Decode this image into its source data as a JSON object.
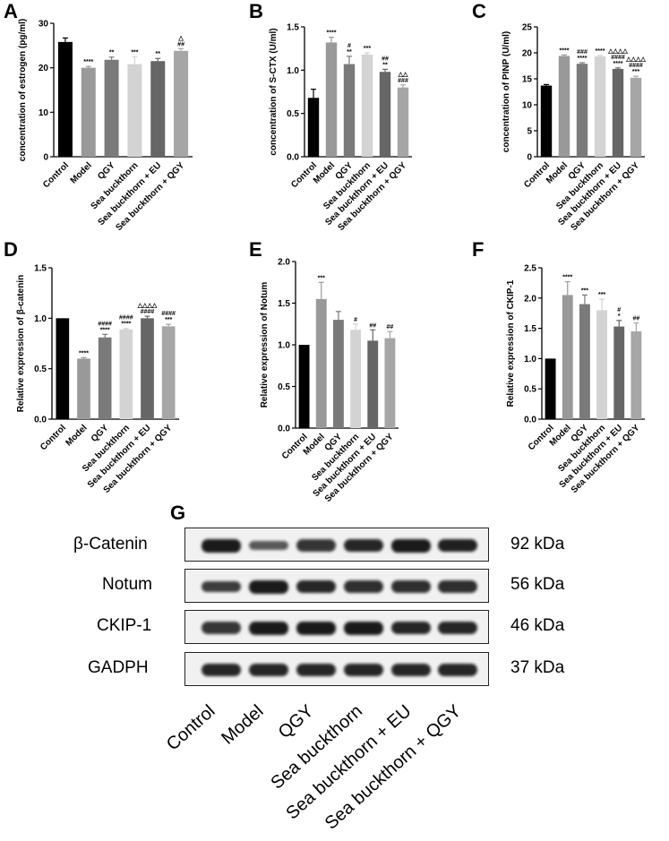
{
  "panels": [
    "A",
    "B",
    "C",
    "D",
    "E",
    "F",
    "G"
  ],
  "chart_data": [
    {
      "type": "bar",
      "panel": "A",
      "ylabel": "concentration of estrogen (pg/ml)",
      "ylim": [
        0,
        30
      ],
      "yticks": [
        "0",
        "10",
        "20",
        "30"
      ],
      "categories": [
        "Control",
        "Model",
        "QGY",
        "Sea buckthorn",
        "Sea buckthorn + EU",
        "Sea buckthorn + QGY"
      ],
      "values": [
        25.8,
        20.0,
        21.8,
        20.8,
        21.5,
        23.8
      ],
      "errors": [
        0.9,
        0.3,
        0.6,
        1.7,
        0.6,
        0.5
      ],
      "significance": [
        [
          ""
        ],
        [
          "****"
        ],
        [
          "**"
        ],
        [
          "***"
        ],
        [
          "**"
        ],
        [
          "△",
          "##"
        ]
      ],
      "colors": [
        "#000000",
        "#999999",
        "#7a7a7a",
        "#d3d3d3",
        "#666666",
        "#a6a6a6"
      ]
    },
    {
      "type": "bar",
      "panel": "B",
      "ylabel": "concentration of S-CTX (U/ml)",
      "ylim": [
        0,
        1.5
      ],
      "yticks": [
        "0.0",
        "0.5",
        "1.0",
        "1.5"
      ],
      "categories": [
        "Control",
        "Model",
        "QGY",
        "Sea buckthorn",
        "Sea buckthorn + EU",
        "Sea buckthorn + QGY"
      ],
      "values": [
        0.68,
        1.32,
        1.07,
        1.18,
        0.98,
        0.8
      ],
      "errors": [
        0.1,
        0.06,
        0.09,
        0.02,
        0.03,
        0.03
      ],
      "significance": [
        [
          ""
        ],
        [
          "****"
        ],
        [
          "#",
          "**"
        ],
        [
          "***"
        ],
        [
          "##",
          "**"
        ],
        [
          "△△",
          "###"
        ]
      ],
      "colors": [
        "#000000",
        "#999999",
        "#7a7a7a",
        "#d3d3d3",
        "#666666",
        "#a6a6a6"
      ]
    },
    {
      "type": "bar",
      "panel": "C",
      "ylabel": "concentration of PINP (U/ml)",
      "ylim": [
        0,
        25
      ],
      "yticks": [
        "0",
        "5",
        "10",
        "15",
        "20",
        "25"
      ],
      "categories": [
        "Control",
        "Model",
        "QGY",
        "Sea buckthorn",
        "Sea buckthorn + EU",
        "Sea buckthorn + QGY"
      ],
      "values": [
        13.7,
        19.4,
        17.9,
        19.3,
        16.9,
        15.2
      ],
      "errors": [
        0.2,
        0.2,
        0.2,
        0.2,
        0.2,
        0.3
      ],
      "significance": [
        [
          ""
        ],
        [
          "****"
        ],
        [
          "###",
          "****"
        ],
        [
          "****"
        ],
        [
          "△△△△",
          "####",
          "****"
        ],
        [
          "△△△△",
          "####",
          "***"
        ]
      ],
      "colors": [
        "#000000",
        "#999999",
        "#7a7a7a",
        "#d3d3d3",
        "#666666",
        "#a6a6a6"
      ]
    },
    {
      "type": "bar",
      "panel": "D",
      "ylabel": "Relative expression of β-catenin",
      "ylim": [
        0,
        1.5
      ],
      "yticks": [
        "0.0",
        "0.5",
        "1.0",
        "1.5"
      ],
      "categories": [
        "Control",
        "Model",
        "QGY",
        "Sea buckthorn",
        "Sea buckthorn + EU",
        "Sea buckthorn + QGY"
      ],
      "values": [
        1.0,
        0.6,
        0.81,
        0.89,
        1.0,
        0.92
      ],
      "errors": [
        0.0,
        0.01,
        0.03,
        0.01,
        0.02,
        0.02
      ],
      "significance": [
        [
          ""
        ],
        [
          "****"
        ],
        [
          "####",
          "****"
        ],
        [
          "####",
          "****"
        ],
        [
          "△△△△",
          "####"
        ],
        [
          "####",
          "***"
        ]
      ],
      "colors": [
        "#000000",
        "#999999",
        "#7a7a7a",
        "#d3d3d3",
        "#666666",
        "#a6a6a6"
      ]
    },
    {
      "type": "bar",
      "panel": "E",
      "ylabel": "Relative expression of Notum",
      "ylim": [
        0,
        2.0
      ],
      "yticks": [
        "0.0",
        "0.5",
        "1.0",
        "1.5",
        "2.0"
      ],
      "categories": [
        "Control",
        "Model",
        "QGY",
        "Sea buckthorn",
        "Sea buckthorn + EU",
        "Sea buckthorn + QGY"
      ],
      "values": [
        1.0,
        1.55,
        1.3,
        1.18,
        1.05,
        1.08
      ],
      "errors": [
        0.0,
        0.2,
        0.1,
        0.07,
        0.13,
        0.08
      ],
      "significance": [
        [
          ""
        ],
        [
          "***"
        ],
        [
          ""
        ],
        [
          "#"
        ],
        [
          "##"
        ],
        [
          "##"
        ]
      ],
      "colors": [
        "#000000",
        "#999999",
        "#7a7a7a",
        "#d3d3d3",
        "#666666",
        "#a6a6a6"
      ]
    },
    {
      "type": "bar",
      "panel": "F",
      "ylabel": "Relative expression of CKIP-1",
      "ylim": [
        0,
        2.5
      ],
      "yticks": [
        "0.0",
        "0.5",
        "1.0",
        "1.5",
        "2.0",
        "2.5"
      ],
      "categories": [
        "Control",
        "Model",
        "QGY",
        "Sea buckthorn",
        "Sea buckthorn + EU",
        "Sea buckthorn + QGY"
      ],
      "values": [
        1.0,
        2.05,
        1.9,
        1.8,
        1.53,
        1.45
      ],
      "errors": [
        0.0,
        0.22,
        0.15,
        0.18,
        0.1,
        0.14
      ],
      "significance": [
        [
          ""
        ],
        [
          "****"
        ],
        [
          "***"
        ],
        [
          "***"
        ],
        [
          "#",
          "*"
        ],
        [
          "##"
        ]
      ],
      "colors": [
        "#000000",
        "#999999",
        "#7a7a7a",
        "#d3d3d3",
        "#666666",
        "#a6a6a6"
      ]
    }
  ],
  "blot": {
    "proteins": [
      "β-Catenin",
      "Notum",
      "CKIP-1",
      "GADPH"
    ],
    "sizes": [
      "92 kDa",
      "56 kDa",
      "46 kDa",
      "37 kDa"
    ],
    "lanes": [
      "Control",
      "Model",
      "QGY",
      "Sea buckthorn",
      "Sea buckthorn + EU",
      "Sea buckthorn + QGY"
    ],
    "intensity": [
      [
        1.0,
        0.55,
        0.8,
        0.9,
        1.0,
        0.95
      ],
      [
        0.75,
        1.0,
        0.9,
        0.85,
        0.85,
        0.85
      ],
      [
        0.8,
        1.0,
        1.0,
        1.0,
        0.9,
        0.9
      ],
      [
        0.9,
        0.9,
        0.9,
        0.9,
        0.9,
        0.9
      ]
    ]
  }
}
